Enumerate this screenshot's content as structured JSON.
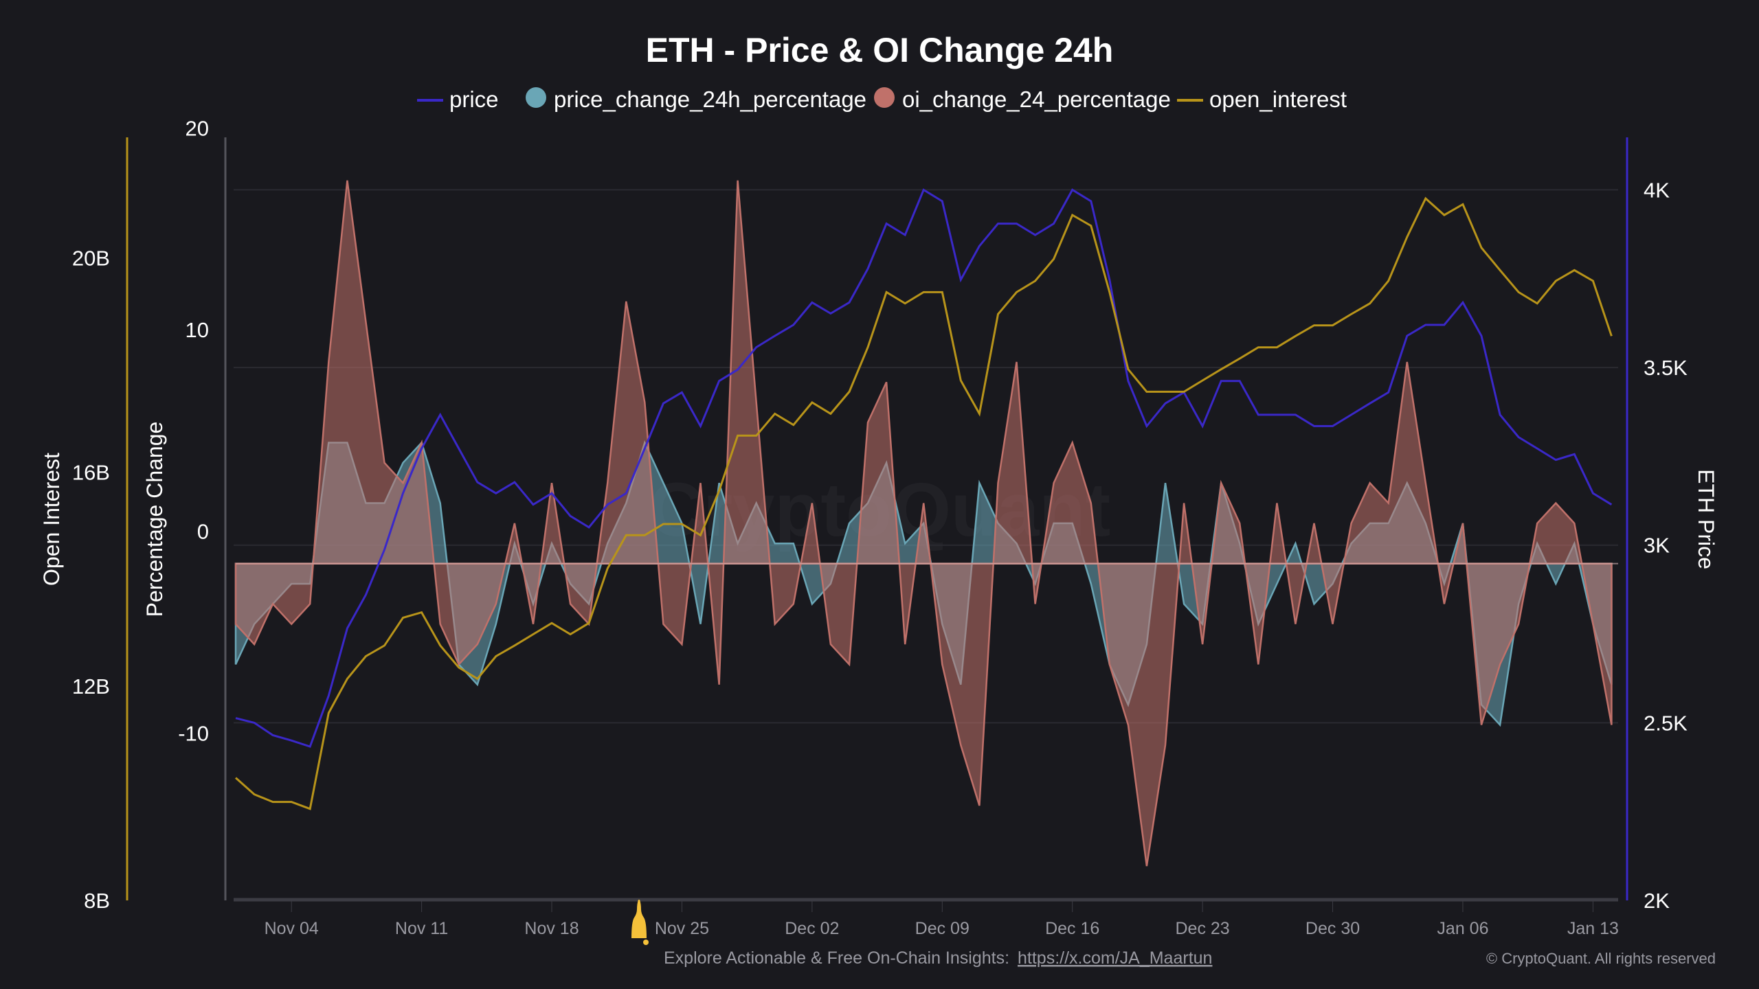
{
  "title": "ETH - Price & OI Change 24h",
  "legend": [
    {
      "label": "price",
      "color": "#3a28c8",
      "kind": "line"
    },
    {
      "label": "price_change_24h_percentage",
      "color": "#6aa6b6",
      "kind": "dot"
    },
    {
      "label": "oi_change_24_percentage",
      "color": "#c0716a",
      "kind": "dot"
    },
    {
      "label": "open_interest",
      "color": "#b8941a",
      "kind": "line"
    }
  ],
  "watermark": "CryptoQuant",
  "footer": {
    "text": "Explore Actionable & Free On-Chain Insights:",
    "link": "https://x.com/JA_Maartun",
    "copyright": "© CryptoQuant. All rights reserved",
    "bell_color": "#f5c13a"
  },
  "colors": {
    "background": "#19191e",
    "grid": "#2a2a31",
    "zero_band": "#d9b6b6"
  },
  "chart_data": {
    "type": "line",
    "title": "ETH - Price & OI Change 24h",
    "x_start": "2024-11-01",
    "x_step_days": 1,
    "xticks": [
      "Nov 04",
      "Nov 11",
      "Nov 18",
      "Nov 25",
      "Dec 02",
      "Dec 09",
      "Dec 16",
      "Dec 23",
      "Dec 30",
      "Jan 06",
      "Jan 13"
    ],
    "xtick_day_index": [
      3,
      10,
      17,
      24,
      31,
      38,
      45,
      52,
      59,
      66,
      73
    ],
    "axes": {
      "open_interest": {
        "label": "Open Interest",
        "ticks": [
          "8B",
          "12B",
          "16B",
          "20B"
        ],
        "tick_values": [
          8,
          12,
          16,
          20
        ],
        "range": [
          8,
          22.2
        ],
        "unit": "B"
      },
      "percentage": {
        "label": "Percentage Change",
        "ticks": [
          "-10",
          "0",
          "10",
          "20"
        ],
        "tick_values": [
          -10,
          0,
          10,
          20
        ],
        "range": [
          -16.7,
          21
        ]
      },
      "price": {
        "label": "ETH Price",
        "ticks": [
          "2K",
          "2.5K",
          "3K",
          "3.5K",
          "4K"
        ],
        "tick_values": [
          2000,
          2500,
          3000,
          3500,
          4000
        ],
        "range": [
          2000,
          4140
        ]
      }
    },
    "grid": true,
    "legend_position": "top-center",
    "series": [
      {
        "name": "price",
        "axis": "price",
        "style": "line",
        "color": "#3a28c8",
        "values": [
          2513,
          2500,
          2465,
          2450,
          2433,
          2576,
          2766,
          2860,
          2987,
          3146,
          3272,
          3367,
          3272,
          3177,
          3146,
          3177,
          3114,
          3146,
          3082,
          3050,
          3114,
          3146,
          3272,
          3399,
          3430,
          3335,
          3462,
          3494,
          3557,
          3589,
          3620,
          3683,
          3652,
          3683,
          3778,
          3905,
          3873,
          4000,
          3968,
          3747,
          3842,
          3905,
          3905,
          3873,
          3905,
          4000,
          3968,
          3747,
          3462,
          3335,
          3399,
          3430,
          3335,
          3462,
          3462,
          3367,
          3367,
          3367,
          3335,
          3335,
          3367,
          3399,
          3430,
          3589,
          3620,
          3620,
          3683,
          3589,
          3367,
          3304,
          3272,
          3240,
          3256,
          3146,
          3114
        ]
      },
      {
        "name": "open_interest",
        "axis": "open_interest",
        "style": "line",
        "color": "#b8941a",
        "values": [
          10.29,
          9.98,
          9.84,
          9.84,
          9.71,
          11.5,
          12.14,
          12.56,
          12.76,
          13.28,
          13.38,
          12.76,
          12.35,
          12.14,
          12.56,
          12.76,
          12.97,
          13.18,
          12.97,
          13.18,
          14.2,
          14.82,
          14.82,
          15.03,
          15.03,
          14.82,
          15.65,
          16.68,
          16.68,
          17.09,
          16.88,
          17.3,
          17.09,
          17.5,
          18.33,
          19.36,
          19.15,
          19.36,
          19.36,
          17.71,
          17.09,
          18.95,
          19.36,
          19.57,
          19.98,
          20.8,
          20.6,
          19.36,
          17.92,
          17.5,
          17.5,
          17.5,
          17.71,
          17.92,
          18.12,
          18.33,
          18.33,
          18.54,
          18.74,
          18.74,
          18.95,
          19.15,
          19.57,
          20.39,
          21.11,
          20.8,
          21.0,
          20.19,
          19.77,
          19.36,
          19.15,
          19.57,
          19.77,
          19.57,
          18.54
        ]
      },
      {
        "name": "price_change_24h_percentage",
        "axis": "percentage",
        "style": "area",
        "color": "#6aa6b6",
        "values": [
          -5,
          -3,
          -2,
          -1,
          -1,
          6,
          6,
          3,
          3,
          5,
          6,
          3,
          -5,
          -6,
          -3,
          1,
          -2,
          1,
          -1,
          -2,
          1,
          3,
          6,
          4,
          2,
          -3,
          4,
          1,
          3,
          1,
          1,
          -2,
          -1,
          2,
          3,
          5,
          1,
          2,
          -3,
          -6,
          4,
          2,
          1,
          -1,
          2,
          2,
          -1,
          -5,
          -7,
          -4,
          4,
          -2,
          -3,
          4,
          1,
          -3,
          -1,
          1,
          -2,
          -1,
          1,
          2,
          2,
          4,
          2,
          -1,
          2,
          -7,
          -8,
          -2,
          1,
          -1,
          1,
          -3,
          -6
        ]
      },
      {
        "name": "oi_change_24_percentage",
        "axis": "percentage",
        "style": "area",
        "color": "#c0716a",
        "values": [
          -3,
          -4,
          -2,
          -3,
          -2,
          10,
          19,
          12,
          5,
          4,
          6,
          -3,
          -5,
          -4,
          -2,
          2,
          -3,
          4,
          -2,
          -3,
          4,
          13,
          8,
          -3,
          -4,
          4,
          -6,
          19,
          8,
          -3,
          -2,
          3,
          -4,
          -5,
          7,
          9,
          -4,
          3,
          -5,
          -9,
          -12,
          4,
          10,
          -2,
          4,
          6,
          3,
          -5,
          -8,
          -15,
          -9,
          3,
          -4,
          4,
          2,
          -5,
          3,
          -3,
          2,
          -3,
          2,
          4,
          3,
          10,
          4,
          -2,
          2,
          -8,
          -5,
          -3,
          2,
          3,
          2,
          -3,
          -8
        ]
      }
    ]
  }
}
